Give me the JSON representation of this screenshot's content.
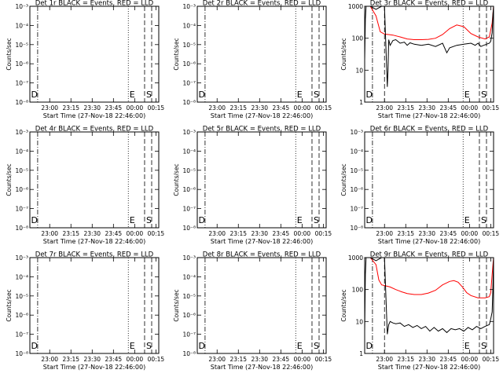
{
  "figure": {
    "time_ticks": [
      "23:00",
      "23:15",
      "23:30",
      "23:45",
      "00:00",
      "00:15"
    ],
    "xlabel": "Start Time (27-Nov-18 22:46:00)",
    "ylabel": "Counts/sec",
    "marker_labels": {
      "d": "D",
      "e": "E",
      "s": "S"
    }
  },
  "chart_data": [
    {
      "type": "line",
      "title": "Det 1r BLACK = Events, RED = LLD",
      "scale": "log",
      "ylim": [
        1e-08,
        0.001
      ],
      "ytick_labels": [
        "10⁻⁸",
        "10⁻⁷",
        "10⁻⁶",
        "10⁻⁵",
        "10⁻⁴",
        "10⁻³"
      ],
      "series": []
    },
    {
      "type": "line",
      "title": "Det 2r BLACK = Events, RED = LLD",
      "scale": "log",
      "ylim": [
        1e-08,
        0.001
      ],
      "ytick_labels": [
        "10⁻⁸",
        "10⁻⁷",
        "10⁻⁶",
        "10⁻⁵",
        "10⁻⁴",
        "10⁻³"
      ],
      "series": []
    },
    {
      "type": "line",
      "title": "Det 3r BLACK = Events, RED = LLD",
      "scale": "log",
      "ylim": [
        1,
        1000
      ],
      "ytick_labels": [
        "1",
        "10",
        "100",
        "1000"
      ],
      "series": [
        {
          "color": "#ff0000",
          "x": [
            0,
            4,
            8,
            11,
            14,
            17,
            20,
            25,
            30,
            35,
            40,
            45,
            50,
            55,
            60,
            65,
            70,
            75,
            80,
            85,
            88,
            90,
            91
          ],
          "y": [
            1000,
            1000,
            500,
            160,
            135,
            130,
            125,
            110,
            95,
            90,
            90,
            92,
            100,
            130,
            200,
            260,
            230,
            140,
            110,
            95,
            110,
            300,
            1000
          ]
        },
        {
          "color": "#000000",
          "x": [
            0,
            0.5,
            1,
            2,
            4,
            6,
            8,
            10,
            12,
            14,
            16,
            16.5,
            17,
            18,
            20,
            22,
            25,
            28,
            30,
            32,
            35,
            40,
            45,
            50,
            55,
            58,
            60,
            65,
            70,
            75,
            78,
            80,
            82,
            84,
            86,
            88,
            89,
            90,
            90.5,
            91
          ],
          "y": [
            20,
            400,
            1000,
            1000,
            1000,
            900,
            800,
            900,
            1000,
            1000,
            3,
            10,
            90,
            60,
            85,
            90,
            70,
            75,
            60,
            72,
            65,
            60,
            65,
            55,
            70,
            35,
            50,
            60,
            65,
            70,
            60,
            70,
            55,
            60,
            65,
            70,
            80,
            150,
            500,
            1000
          ]
        }
      ]
    },
    {
      "type": "line",
      "title": "Det 4r BLACK = Events, RED = LLD",
      "scale": "log",
      "ylim": [
        1e-08,
        0.001
      ],
      "ytick_labels": [
        "10⁻⁸",
        "10⁻⁷",
        "10⁻⁶",
        "10⁻⁵",
        "10⁻⁴",
        "10⁻³"
      ],
      "series": []
    },
    {
      "type": "line",
      "title": "Det 5r BLACK = Events, RED = LLD",
      "scale": "log",
      "ylim": [
        1e-08,
        0.001
      ],
      "ytick_labels": [
        "10⁻⁸",
        "10⁻⁷",
        "10⁻⁶",
        "10⁻⁵",
        "10⁻⁴",
        "10⁻³"
      ],
      "series": []
    },
    {
      "type": "line",
      "title": "Det 6r BLACK = Events, RED = LLD",
      "scale": "log",
      "ylim": [
        1e-08,
        0.001
      ],
      "ytick_labels": [
        "10⁻⁸",
        "10⁻⁷",
        "10⁻⁶",
        "10⁻⁵",
        "10⁻⁴",
        "10⁻³"
      ],
      "series": []
    },
    {
      "type": "line",
      "title": "Det 7r BLACK = Events, RED = LLD",
      "scale": "log",
      "ylim": [
        1e-08,
        0.001
      ],
      "ytick_labels": [
        "10⁻⁸",
        "10⁻⁷",
        "10⁻⁶",
        "10⁻⁵",
        "10⁻⁴",
        "10⁻³"
      ],
      "series": []
    },
    {
      "type": "line",
      "title": "Det 8r BLACK = Events, RED = LLD",
      "scale": "log",
      "ylim": [
        1e-08,
        0.001
      ],
      "ytick_labels": [
        "10⁻⁸",
        "10⁻⁷",
        "10⁻⁶",
        "10⁻⁵",
        "10⁻⁴",
        "10⁻³"
      ],
      "series": []
    },
    {
      "type": "line",
      "title": "Det 9r BLACK = Events, RED = LLD",
      "scale": "log",
      "ylim": [
        1,
        1000
      ],
      "ytick_labels": [
        "1",
        "10",
        "100",
        "1000"
      ],
      "series": [
        {
          "color": "#ff0000",
          "x": [
            0,
            4,
            8,
            10,
            12,
            15,
            18,
            22,
            26,
            30,
            35,
            40,
            45,
            50,
            55,
            60,
            63,
            66,
            69,
            72,
            75,
            80,
            85,
            88,
            89,
            90,
            91
          ],
          "y": [
            1000,
            1000,
            600,
            200,
            140,
            130,
            120,
            100,
            85,
            75,
            70,
            70,
            78,
            95,
            140,
            180,
            190,
            170,
            120,
            80,
            65,
            55,
            55,
            60,
            80,
            300,
            1000
          ]
        },
        {
          "color": "#000000",
          "x": [
            0,
            0.5,
            1,
            2,
            4,
            6,
            8,
            10,
            12,
            14,
            16,
            17,
            18,
            20,
            22,
            25,
            28,
            31,
            34,
            37,
            40,
            43,
            46,
            49,
            52,
            55,
            58,
            61,
            64,
            67,
            70,
            73,
            76,
            79,
            82,
            85,
            88,
            89,
            90,
            90.5,
            91
          ],
          "y": [
            5,
            300,
            1000,
            1000,
            1000,
            900,
            800,
            900,
            1000,
            1000,
            4,
            8,
            10,
            9,
            8.5,
            9,
            7,
            8,
            6.5,
            7.5,
            6,
            7,
            5,
            6.5,
            5,
            6,
            4.5,
            6,
            5.5,
            6,
            5,
            6.5,
            5.5,
            7,
            6,
            7,
            8,
            12,
            20,
            100,
            1000
          ]
        }
      ]
    }
  ]
}
